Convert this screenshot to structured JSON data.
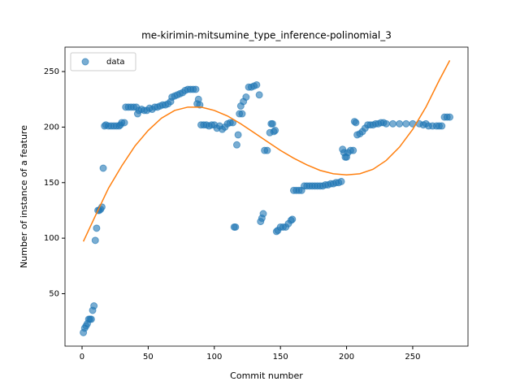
{
  "chart_data": {
    "type": "scatter",
    "title": "me-kirimin-mitsumine_type_inference-polinomial_3",
    "x_label": "Commit number",
    "y_label": "Number of instance of a feature",
    "xlim": [
      -12.9,
      291.8
    ],
    "ylim": [
      2.8,
      272
    ],
    "xticks": [
      0,
      50,
      100,
      150,
      200,
      250
    ],
    "yticks": [
      50,
      100,
      150,
      200,
      250
    ],
    "legend": "upper left",
    "series": [
      {
        "name": "data",
        "type": "scatter",
        "color": "#1f77b4",
        "x": [
          1,
          2,
          3,
          4,
          5,
          6,
          7,
          8,
          9,
          10,
          11,
          12,
          13,
          14,
          15,
          16,
          17,
          18,
          20,
          22,
          24,
          26,
          28,
          29,
          30,
          32,
          33,
          35,
          37,
          39,
          41,
          42,
          43,
          45,
          47,
          49,
          51,
          53,
          55,
          57,
          59,
          61,
          63,
          65,
          67,
          68,
          70,
          72,
          74,
          76,
          78,
          80,
          82,
          84,
          86,
          87,
          88,
          89,
          90,
          92,
          94,
          96,
          98,
          100,
          102,
          104,
          106,
          108,
          110,
          112,
          114,
          115,
          116,
          117,
          118,
          119,
          120,
          121,
          122,
          124,
          126,
          128,
          130,
          132,
          134,
          135,
          136,
          137,
          138,
          140,
          142,
          143,
          144,
          145,
          146,
          147,
          148,
          150,
          152,
          154,
          156,
          158,
          159,
          160,
          162,
          164,
          166,
          168,
          170,
          172,
          174,
          176,
          178,
          180,
          182,
          184,
          186,
          188,
          190,
          192,
          194,
          196,
          197,
          198,
          199,
          200,
          201,
          203,
          205,
          206,
          207,
          208,
          210,
          212,
          214,
          216,
          218,
          220,
          222,
          224,
          226,
          228,
          230,
          235,
          240,
          245,
          250,
          255,
          258,
          260,
          262,
          265,
          268,
          270,
          272,
          274,
          276,
          278
        ],
        "values": [
          15,
          19,
          21,
          23,
          27,
          27,
          27,
          35,
          39,
          98,
          109,
          125,
          125,
          126,
          128,
          163,
          201,
          202,
          201,
          201,
          201,
          201,
          201,
          202,
          204,
          204,
          218,
          218,
          218,
          218,
          218,
          212,
          215,
          216,
          215,
          215,
          217,
          216,
          218,
          218,
          219,
          220,
          220,
          221,
          223,
          227,
          228,
          229,
          230,
          231,
          233,
          234,
          234,
          234,
          234,
          221,
          225,
          220,
          202,
          202,
          202,
          201,
          202,
          202,
          199,
          201,
          198,
          200,
          203,
          204,
          204,
          110,
          110,
          184,
          193,
          212,
          219,
          212,
          223,
          227,
          236,
          236,
          237,
          238,
          229,
          115,
          118,
          122,
          179,
          179,
          195,
          203,
          203,
          196,
          197,
          106,
          107,
          110,
          110,
          110,
          113,
          116,
          117,
          143,
          143,
          143,
          143,
          147,
          147,
          147,
          147,
          147,
          147,
          147,
          147,
          148,
          148,
          149,
          149,
          150,
          150,
          151,
          180,
          177,
          173,
          173,
          177,
          179,
          179,
          205,
          204,
          193,
          194,
          196,
          199,
          202,
          202,
          202,
          203,
          203,
          204,
          204,
          203,
          203,
          203,
          203,
          203,
          203,
          202,
          203,
          201,
          201,
          201,
          201,
          201,
          209,
          209,
          209
        ]
      },
      {
        "type": "line",
        "color": "#ff7f0e",
        "x": [
          1,
          10,
          20,
          30,
          40,
          50,
          60,
          70,
          80,
          90,
          100,
          110,
          120,
          130,
          140,
          150,
          160,
          170,
          180,
          190,
          200,
          210,
          220,
          230,
          240,
          250,
          260,
          270,
          278
        ],
        "values": [
          97,
          120,
          145,
          165,
          183,
          197,
          208,
          215,
          218,
          218,
          215,
          210,
          203,
          195,
          187,
          179,
          172,
          166,
          161,
          158,
          157,
          158,
          162,
          170,
          182,
          198,
          218,
          242,
          260
        ]
      }
    ]
  }
}
